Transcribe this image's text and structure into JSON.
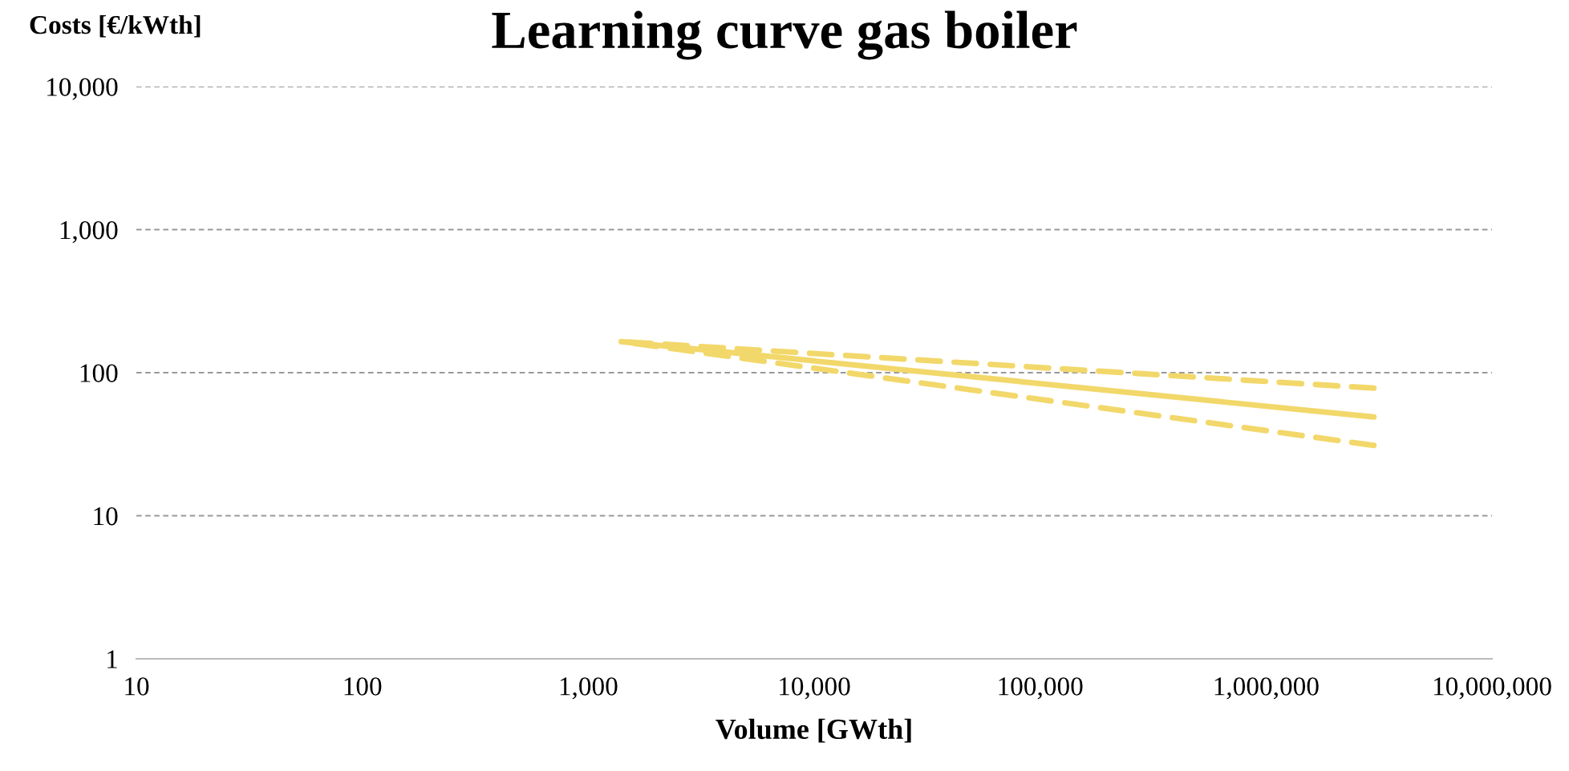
{
  "chart_data": {
    "type": "line",
    "title": "Learning curve gas boiler",
    "xlabel": "Volume [GWth]",
    "ylabel": "Costs [€/kWth]",
    "log": "xy",
    "grid": "y",
    "x": [
      1400,
      3000000
    ],
    "series": [
      {
        "values": [
          165,
          49
        ],
        "color": "#f2d86a",
        "line_style": "solid"
      },
      {
        "values": [
          165,
          78
        ],
        "color": "#f2d86a",
        "line_style": "dashed"
      },
      {
        "values": [
          165,
          31
        ],
        "color": "#f2d86a",
        "line_style": "dashed"
      }
    ],
    "xlim": [
      10,
      10000000
    ],
    "ylim": [
      1,
      10000
    ],
    "xticks": [
      {
        "value": 10,
        "label": "10"
      },
      {
        "value": 100,
        "label": "100"
      },
      {
        "value": 1000,
        "label": "1,000"
      },
      {
        "value": 10000,
        "label": "10,000"
      },
      {
        "value": 100000,
        "label": "100,000"
      },
      {
        "value": 1000000,
        "label": "1,000,000"
      },
      {
        "value": 10000000,
        "label": "10,000,000"
      }
    ],
    "yticks": [
      {
        "value": 1,
        "label": "1"
      },
      {
        "value": 10,
        "label": "10"
      },
      {
        "value": 100,
        "label": "100"
      },
      {
        "value": 1000,
        "label": "1,000"
      },
      {
        "value": 10000,
        "label": "10,000"
      }
    ]
  }
}
